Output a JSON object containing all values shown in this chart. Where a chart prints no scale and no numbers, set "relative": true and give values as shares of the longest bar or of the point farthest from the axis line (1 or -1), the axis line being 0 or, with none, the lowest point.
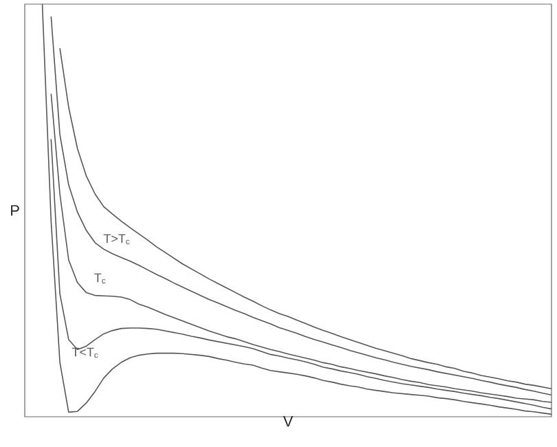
{
  "chart_data": {
    "type": "line",
    "relative": true,
    "xlabel": "V",
    "ylabel": "P",
    "categories": [
      null,
      null,
      null,
      null,
      null,
      null,
      null,
      null,
      null,
      null,
      null,
      null,
      null,
      null,
      null,
      null,
      null,
      null,
      null,
      null,
      null,
      null,
      null,
      null,
      null,
      null,
      null,
      null,
      null,
      null,
      null,
      null,
      null,
      null,
      null,
      null,
      null,
      null,
      null,
      null,
      null,
      null,
      null,
      null,
      null,
      null,
      null,
      null,
      null,
      null,
      null,
      null,
      null,
      null,
      null,
      null,
      null,
      null,
      null,
      null,
      null
    ],
    "series": [
      {
        "color": "#555555",
        "values": [
          null,
          null,
          1.0,
          0.474,
          0.132,
          0.011,
          0.013,
          0.033,
          0.061,
          0.094,
          0.116,
          0.132,
          0.143,
          0.149,
          0.152,
          0.154,
          0.154,
          0.154,
          0.153,
          0.151,
          0.149,
          0.146,
          0.141,
          0.137,
          0.132,
          0.128,
          0.125,
          0.118,
          0.112,
          0.109,
          0.106,
          0.103,
          0.099,
          0.094,
          0.088,
          0.084,
          0.079,
          0.075,
          0.072,
          0.067,
          0.064,
          0.061,
          0.058,
          0.056,
          0.054,
          0.052,
          0.05,
          0.046,
          0.044,
          0.041,
          0.037,
          0.034,
          0.031,
          0.028,
          0.024,
          0.021,
          0.018,
          0.014,
          0.012,
          0.009,
          0.006
        ]
      },
      {
        "color": "#555555",
        "values": [
          null,
          null,
          null,
          0.673,
          0.298,
          0.187,
          0.163,
          0.171,
          0.187,
          0.201,
          0.209,
          0.214,
          0.215,
          0.215,
          0.214,
          0.212,
          0.208,
          0.204,
          0.2,
          0.195,
          0.191,
          0.186,
          0.182,
          0.178,
          0.174,
          0.17,
          0.165,
          0.158,
          0.151,
          0.147,
          0.142,
          0.138,
          0.133,
          0.127,
          0.12,
          0.116,
          0.111,
          0.107,
          0.103,
          0.097,
          0.093,
          0.088,
          0.084,
          0.08,
          0.077,
          0.074,
          0.071,
          0.067,
          0.064,
          0.061,
          0.057,
          0.054,
          0.051,
          0.047,
          0.044,
          0.04,
          0.036,
          0.032,
          0.028,
          0.023,
          0.019
        ]
      },
      {
        "color": "#555555",
        "values": [
          null,
          null,
          null,
          0.783,
          0.54,
          0.38,
          0.325,
          0.301,
          0.294,
          0.293,
          0.292,
          0.29,
          0.284,
          0.273,
          0.266,
          0.257,
          0.248,
          0.24,
          0.232,
          0.224,
          0.216,
          0.208,
          0.201,
          0.194,
          0.189,
          0.182,
          0.175,
          0.169,
          0.163,
          0.158,
          0.152,
          0.147,
          0.142,
          0.137,
          0.131,
          0.127,
          0.121,
          0.117,
          0.112,
          0.108,
          0.104,
          0.099,
          0.095,
          0.09,
          0.086,
          0.083,
          0.078,
          0.075,
          0.072,
          0.068,
          0.065,
          0.062,
          0.058,
          0.055,
          0.052,
          0.049,
          0.045,
          0.043,
          0.041,
          0.037,
          0.035
        ]
      },
      {
        "color": "#555555",
        "values": [
          null,
          null,
          null,
          0.97,
          0.684,
          0.562,
          0.496,
          0.452,
          0.422,
          0.406,
          0.395,
          0.386,
          0.377,
          0.367,
          0.356,
          0.345,
          0.335,
          0.324,
          0.314,
          0.304,
          0.294,
          0.284,
          0.276,
          0.267,
          0.258,
          0.25,
          0.241,
          0.233,
          0.225,
          0.216,
          0.209,
          0.202,
          0.194,
          0.187,
          0.181,
          0.174,
          0.168,
          0.161,
          0.155,
          0.149,
          0.143,
          0.138,
          0.132,
          0.127,
          0.122,
          0.118,
          0.114,
          0.109,
          0.105,
          0.101,
          0.097,
          0.093,
          0.088,
          0.084,
          0.079,
          0.075,
          0.071,
          0.066,
          0.062,
          0.057,
          0.053
        ]
      },
      {
        "color": "#555555",
        "values": [
          null,
          null,
          null,
          null,
          0.893,
          0.75,
          0.65,
          0.584,
          0.54,
          0.509,
          0.491,
          0.474,
          0.458,
          0.443,
          0.428,
          0.412,
          0.398,
          0.384,
          0.37,
          0.358,
          0.346,
          0.334,
          0.323,
          0.312,
          0.301,
          0.29,
          0.28,
          0.269,
          0.259,
          0.25,
          0.243,
          0.234,
          0.226,
          0.217,
          0.209,
          0.202,
          0.194,
          0.187,
          0.18,
          0.173,
          0.166,
          0.16,
          0.154,
          0.148,
          0.141,
          0.136,
          0.131,
          0.127,
          0.121,
          0.117,
          0.11,
          0.106,
          0.1,
          0.096,
          0.092,
          0.087,
          0.084,
          0.079,
          0.076,
          0.072,
          0.068
        ]
      }
    ],
    "annotations": [
      "T>T$_{c}$",
      "T$_{c}$",
      "T<T$_{c}$"
    ]
  }
}
